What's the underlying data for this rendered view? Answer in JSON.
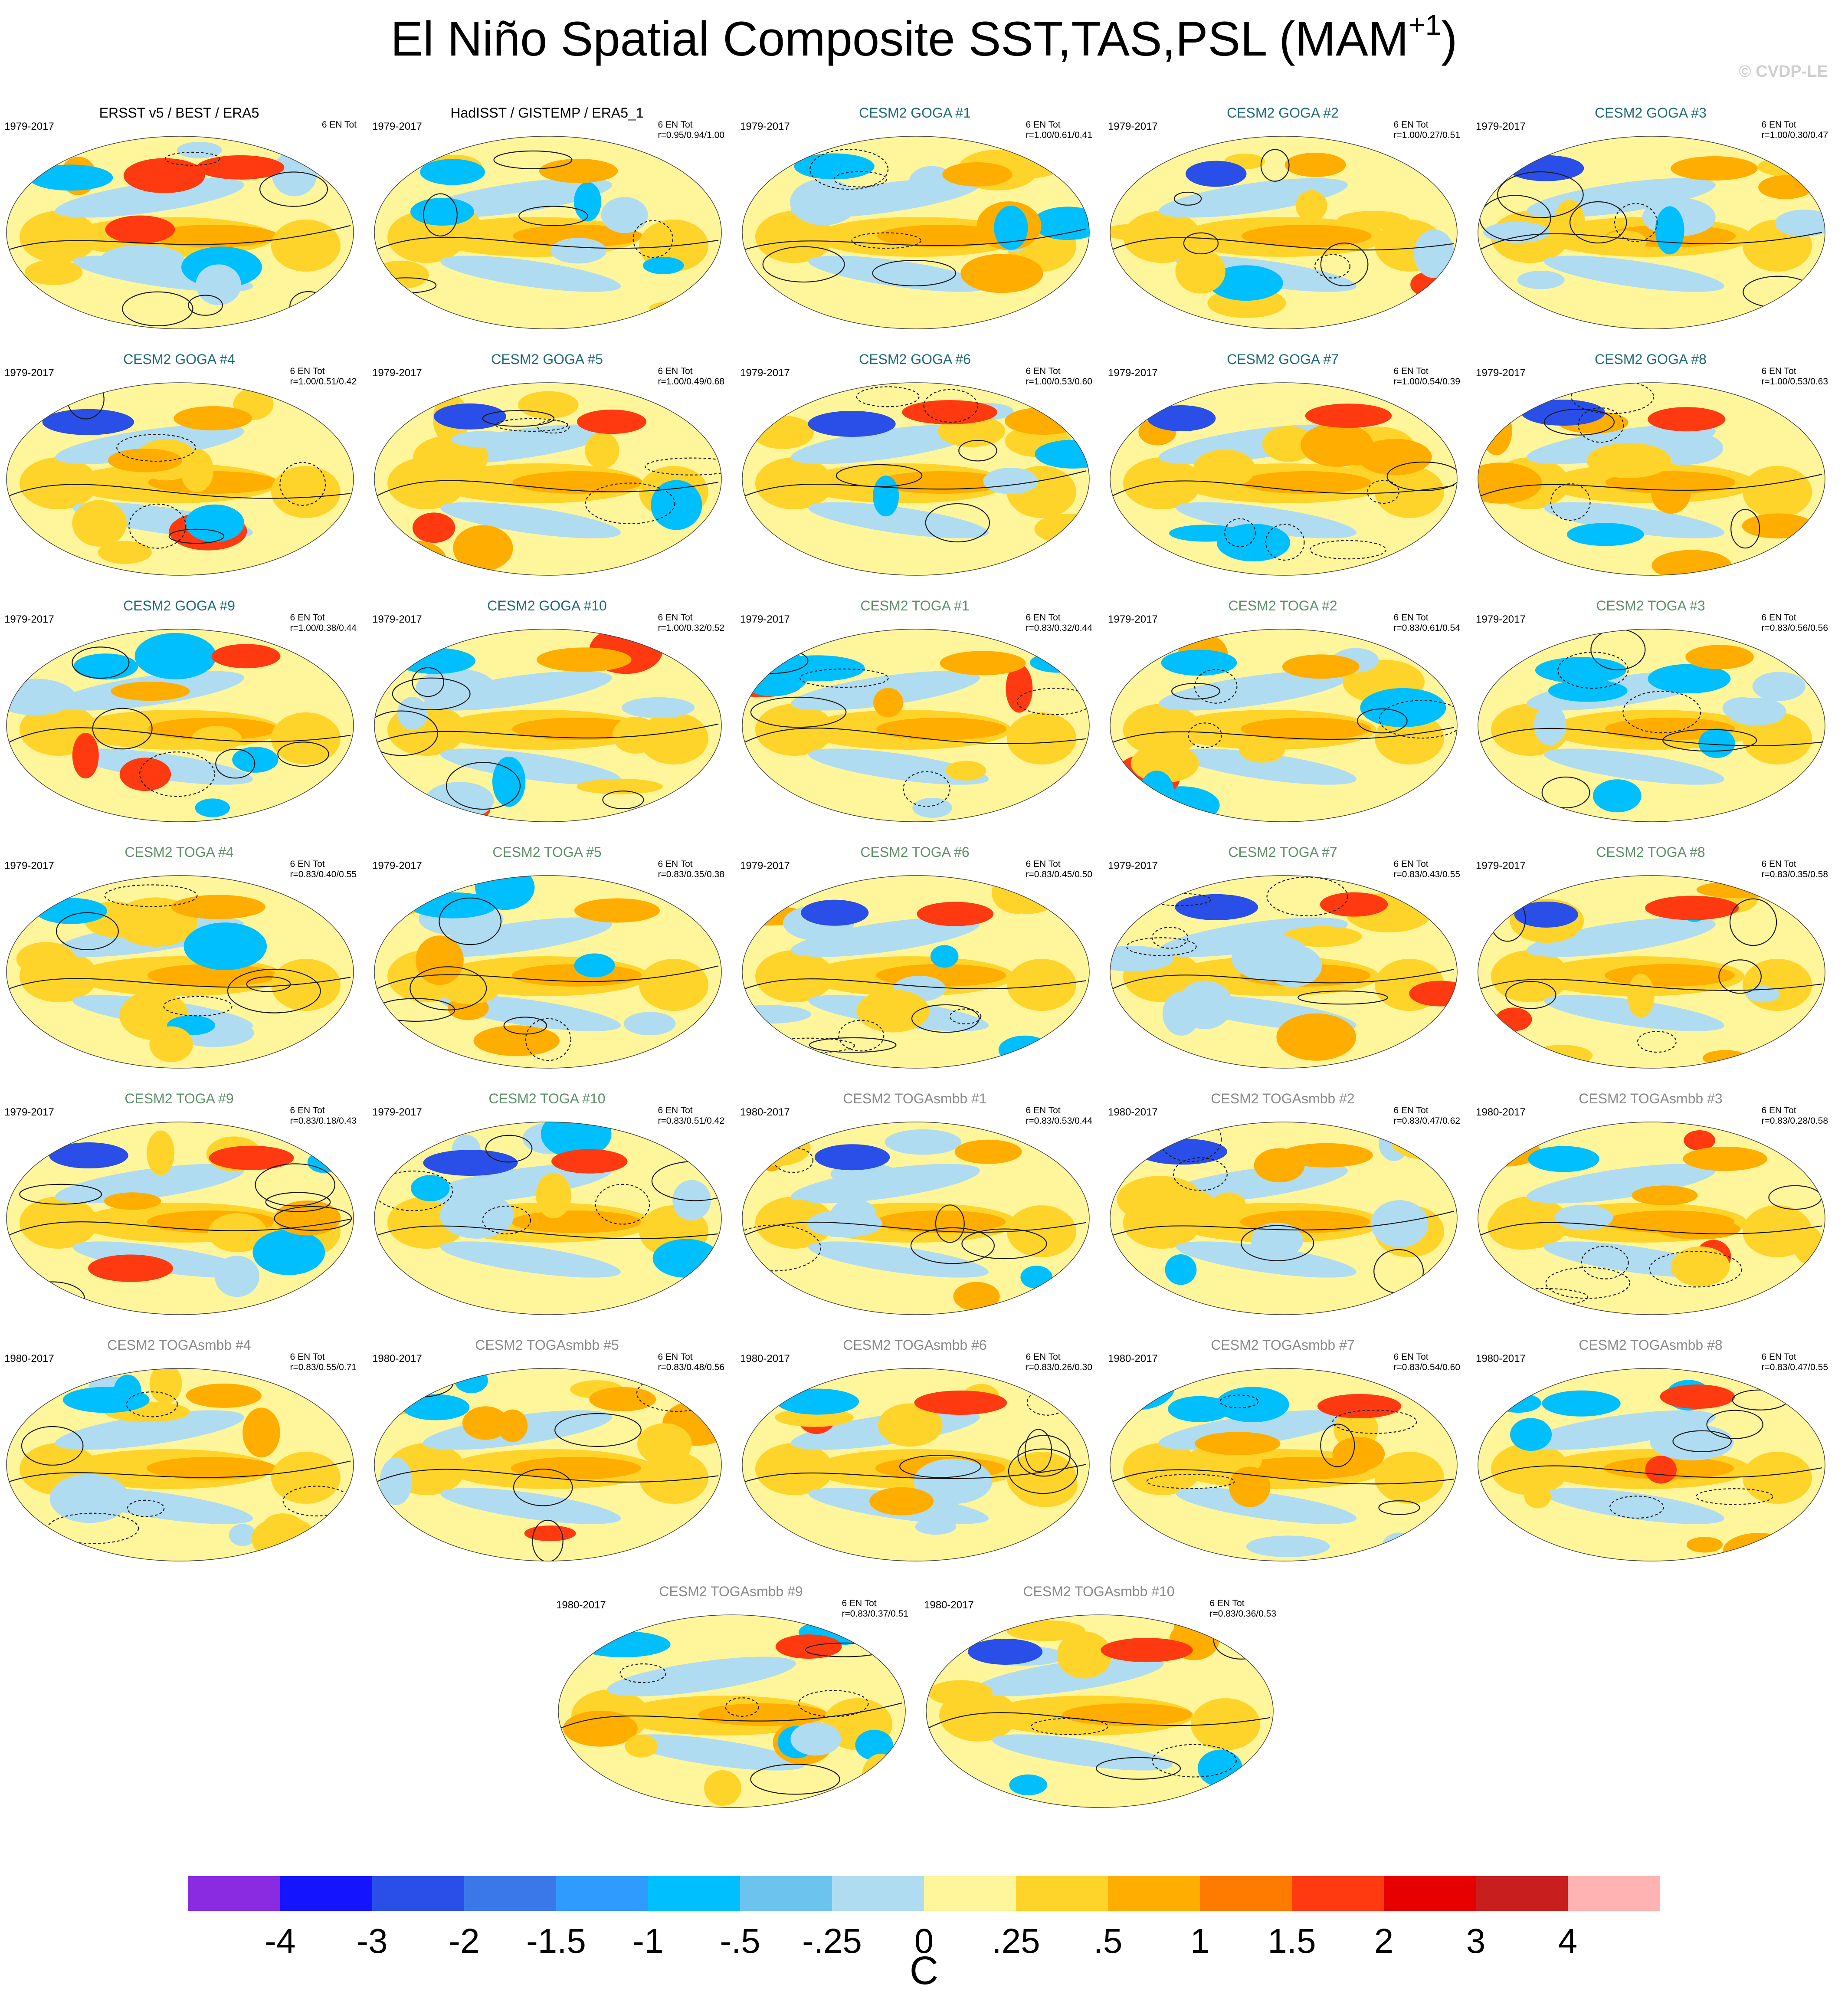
{
  "title_main": "El Niño Spatial Composite SST,TAS,PSL (MAM",
  "title_sup": "+1",
  "title_end": ")",
  "copyright": "© CVDP-LE",
  "panels": [
    {
      "title": "ERSST v5 / BEST / ERA5",
      "period": "1979-2017",
      "entot": "6 EN Tot",
      "r": "",
      "group": "obs"
    },
    {
      "title": "HadISST / GISTEMP / ERA5_1",
      "period": "1979-2017",
      "entot": "6 EN Tot",
      "r": "r=0.95/0.94/1.00",
      "group": "obs"
    },
    {
      "title": "CESM2 GOGA #1",
      "period": "1979-2017",
      "entot": "6 EN Tot",
      "r": "r=1.00/0.61/0.41",
      "group": "goga"
    },
    {
      "title": "CESM2 GOGA #2",
      "period": "1979-2017",
      "entot": "6 EN Tot",
      "r": "r=1.00/0.27/0.51",
      "group": "goga"
    },
    {
      "title": "CESM2 GOGA #3",
      "period": "1979-2017",
      "entot": "6 EN Tot",
      "r": "r=1.00/0.30/0.47",
      "group": "goga"
    },
    {
      "title": "CESM2 GOGA #4",
      "period": "1979-2017",
      "entot": "6 EN Tot",
      "r": "r=1.00/0.51/0.42",
      "group": "goga"
    },
    {
      "title": "CESM2 GOGA #5",
      "period": "1979-2017",
      "entot": "6 EN Tot",
      "r": "r=1.00/0.49/0.68",
      "group": "goga"
    },
    {
      "title": "CESM2 GOGA #6",
      "period": "1979-2017",
      "entot": "6 EN Tot",
      "r": "r=1.00/0.53/0.60",
      "group": "goga"
    },
    {
      "title": "CESM2 GOGA #7",
      "period": "1979-2017",
      "entot": "6 EN Tot",
      "r": "r=1.00/0.54/0.39",
      "group": "goga"
    },
    {
      "title": "CESM2 GOGA #8",
      "period": "1979-2017",
      "entot": "6 EN Tot",
      "r": "r=1.00/0.53/0.63",
      "group": "goga"
    },
    {
      "title": "CESM2 GOGA #9",
      "period": "1979-2017",
      "entot": "6 EN Tot",
      "r": "r=1.00/0.38/0.44",
      "group": "goga"
    },
    {
      "title": "CESM2 GOGA #10",
      "period": "1979-2017",
      "entot": "6 EN Tot",
      "r": "r=1.00/0.32/0.52",
      "group": "goga"
    },
    {
      "title": "CESM2 TOGA #1",
      "period": "1979-2017",
      "entot": "6 EN Tot",
      "r": "r=0.83/0.32/0.44",
      "group": "toga"
    },
    {
      "title": "CESM2 TOGA #2",
      "period": "1979-2017",
      "entot": "6 EN Tot",
      "r": "r=0.83/0.61/0.54",
      "group": "toga"
    },
    {
      "title": "CESM2 TOGA #3",
      "period": "1979-2017",
      "entot": "6 EN Tot",
      "r": "r=0.83/0.56/0.56",
      "group": "toga"
    },
    {
      "title": "CESM2 TOGA #4",
      "period": "1979-2017",
      "entot": "6 EN Tot",
      "r": "r=0.83/0.40/0.55",
      "group": "toga"
    },
    {
      "title": "CESM2 TOGA #5",
      "period": "1979-2017",
      "entot": "6 EN Tot",
      "r": "r=0.83/0.35/0.38",
      "group": "toga"
    },
    {
      "title": "CESM2 TOGA #6",
      "period": "1979-2017",
      "entot": "6 EN Tot",
      "r": "r=0.83/0.45/0.50",
      "group": "toga"
    },
    {
      "title": "CESM2 TOGA #7",
      "period": "1979-2017",
      "entot": "6 EN Tot",
      "r": "r=0.83/0.43/0.55",
      "group": "toga"
    },
    {
      "title": "CESM2 TOGA #8",
      "period": "1979-2017",
      "entot": "6 EN Tot",
      "r": "r=0.83/0.35/0.58",
      "group": "toga"
    },
    {
      "title": "CESM2 TOGA #9",
      "period": "1979-2017",
      "entot": "6 EN Tot",
      "r": "r=0.83/0.18/0.43",
      "group": "toga"
    },
    {
      "title": "CESM2 TOGA #10",
      "period": "1979-2017",
      "entot": "6 EN Tot",
      "r": "r=0.83/0.51/0.42",
      "group": "toga"
    },
    {
      "title": "CESM2 TOGAsmbb #1",
      "period": "1980-2017",
      "entot": "6 EN Tot",
      "r": "r=0.83/0.53/0.44",
      "group": "smbb"
    },
    {
      "title": "CESM2 TOGAsmbb #2",
      "period": "1980-2017",
      "entot": "6 EN Tot",
      "r": "r=0.83/0.47/0.62",
      "group": "smbb"
    },
    {
      "title": "CESM2 TOGAsmbb #3",
      "period": "1980-2017",
      "entot": "6 EN Tot",
      "r": "r=0.83/0.28/0.58",
      "group": "smbb"
    },
    {
      "title": "CESM2 TOGAsmbb #4",
      "period": "1980-2017",
      "entot": "6 EN Tot",
      "r": "r=0.83/0.55/0.71",
      "group": "smbb"
    },
    {
      "title": "CESM2 TOGAsmbb #5",
      "period": "1980-2017",
      "entot": "6 EN Tot",
      "r": "r=0.83/0.48/0.56",
      "group": "smbb"
    },
    {
      "title": "CESM2 TOGAsmbb #6",
      "period": "1980-2017",
      "entot": "6 EN Tot",
      "r": "r=0.83/0.26/0.30",
      "group": "smbb"
    },
    {
      "title": "CESM2 TOGAsmbb #7",
      "period": "1980-2017",
      "entot": "6 EN Tot",
      "r": "r=0.83/0.54/0.60",
      "group": "smbb"
    },
    {
      "title": "CESM2 TOGAsmbb #8",
      "period": "1980-2017",
      "entot": "6 EN Tot",
      "r": "r=0.83/0.47/0.55",
      "group": "smbb"
    },
    {
      "title": "CESM2 TOGAsmbb #9",
      "period": "1980-2017",
      "entot": "6 EN Tot",
      "r": "r=0.83/0.37/0.51",
      "group": "smbb"
    },
    {
      "title": "CESM2 TOGAsmbb #10",
      "period": "1980-2017",
      "entot": "6 EN Tot",
      "r": "r=0.83/0.36/0.53",
      "group": "smbb"
    }
  ],
  "colorbar": {
    "colors": [
      "#8a2be2",
      "#1414ff",
      "#2a4fe8",
      "#3a78ea",
      "#2f9bff",
      "#00bfff",
      "#6cc4ee",
      "#b0dcf2",
      "#fff59b",
      "#ffd42a",
      "#ffae00",
      "#ff7b00",
      "#ff3a10",
      "#e60000",
      "#c81e1e",
      "#ffb3b3"
    ],
    "labels": [
      "-4",
      "-3",
      "-2",
      "-1.5",
      "-1",
      "-.5",
      "-.25",
      "0",
      ".25",
      ".5",
      "1",
      "1.5",
      "2",
      "3",
      "4"
    ],
    "unit": "C"
  },
  "map_colors": {
    "ocean_neutral": "#fff59b",
    "warm": "#ffd42a",
    "warmer": "#ffae00",
    "hot": "#ff3a10",
    "cool": "#b0dcf2",
    "cold": "#00bfff",
    "colder": "#2a4fe8",
    "contour": "#1a1a1a"
  }
}
